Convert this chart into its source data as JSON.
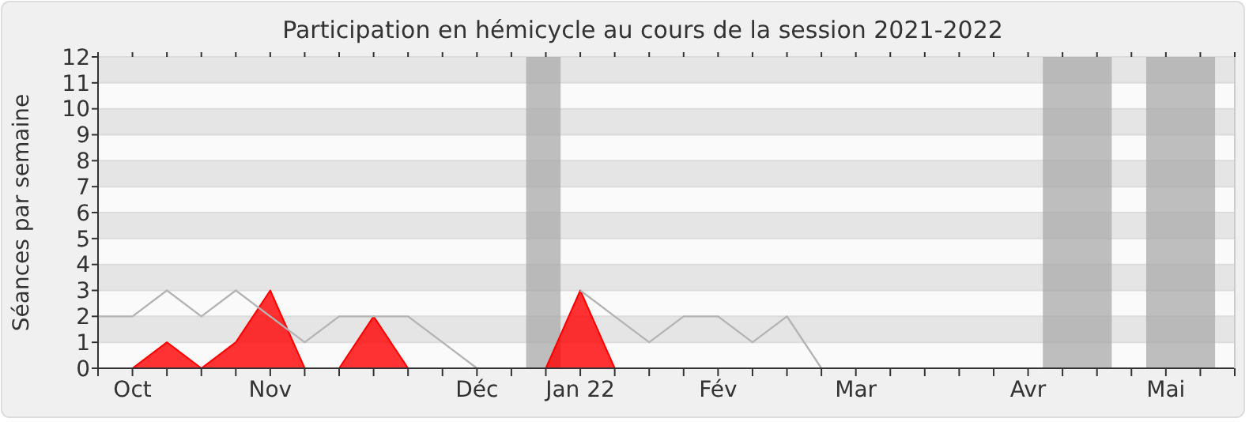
{
  "chart_data": {
    "type": "line",
    "title": "Participation en hémicycle au cours de la session 2021-2022",
    "ylabel": "Séances par semaine",
    "x": [
      "2021-09-28",
      "2021-10-05",
      "2021-10-12",
      "2021-10-19",
      "2021-10-26",
      "2021-11-02",
      "2021-11-09",
      "2021-11-16",
      "2021-11-23",
      "2021-11-30",
      "2021-12-07",
      "2021-12-14",
      "2021-12-21",
      "2021-12-28",
      "2022-01-04",
      "2022-01-11",
      "2022-01-18",
      "2022-01-25",
      "2022-02-01",
      "2022-02-08",
      "2022-02-15",
      "2022-02-22",
      "2022-03-01",
      "2022-03-08",
      "2022-03-15",
      "2022-03-22",
      "2022-03-29",
      "2022-04-05",
      "2022-04-12",
      "2022-04-19",
      "2022-04-26",
      "2022-05-03",
      "2022-05-10",
      "2022-05-17"
    ],
    "series": [
      {
        "type": "line",
        "color": "#b4b4b4",
        "values": [
          2,
          2,
          3,
          2,
          3,
          2,
          1,
          2,
          2,
          2,
          1,
          0,
          null,
          null,
          3,
          2,
          1,
          2,
          2,
          1,
          2,
          0,
          null,
          null,
          null,
          null,
          null,
          null,
          null,
          null,
          null,
          null,
          null,
          null
        ]
      },
      {
        "type": "area",
        "color": "#ff0000",
        "values": [
          0,
          0,
          1,
          0,
          1,
          3,
          0,
          0,
          2,
          0,
          0,
          0,
          0,
          0,
          3,
          0,
          0,
          0,
          0,
          0,
          0,
          0,
          0,
          0,
          0,
          0,
          0,
          0,
          0,
          0,
          0,
          0,
          0,
          0
        ]
      }
    ],
    "xlim": [
      "2021-09-28",
      "2022-05-17"
    ],
    "xticks": [
      {
        "value": "2021-09-28",
        "label": null
      },
      {
        "value": "2021-10-05",
        "label": "Oct"
      },
      {
        "value": "2021-10-12",
        "label": null
      },
      {
        "value": "2021-10-19",
        "label": null
      },
      {
        "value": "2021-10-26",
        "label": null
      },
      {
        "value": "2021-11-02",
        "label": "Nov"
      },
      {
        "value": "2021-11-09",
        "label": null
      },
      {
        "value": "2021-11-16",
        "label": null
      },
      {
        "value": "2021-11-23",
        "label": null
      },
      {
        "value": "2021-11-30",
        "label": null
      },
      {
        "value": "2021-12-07",
        "label": null
      },
      {
        "value": "2021-12-14",
        "label": "Déc"
      },
      {
        "value": "2021-12-21",
        "label": null
      },
      {
        "value": "2021-12-28",
        "label": null
      },
      {
        "value": "2022-01-04",
        "label": "Jan 22"
      },
      {
        "value": "2022-01-11",
        "label": null
      },
      {
        "value": "2022-01-18",
        "label": null
      },
      {
        "value": "2022-01-25",
        "label": null
      },
      {
        "value": "2022-02-01",
        "label": "Fév"
      },
      {
        "value": "2022-02-08",
        "label": null
      },
      {
        "value": "2022-02-15",
        "label": null
      },
      {
        "value": "2022-02-22",
        "label": null
      },
      {
        "value": "2022-03-01",
        "label": "Mar"
      },
      {
        "value": "2022-03-08",
        "label": null
      },
      {
        "value": "2022-03-15",
        "label": null
      },
      {
        "value": "2022-03-22",
        "label": null
      },
      {
        "value": "2022-03-29",
        "label": null
      },
      {
        "value": "2022-04-05",
        "label": "Avr"
      },
      {
        "value": "2022-04-12",
        "label": null
      },
      {
        "value": "2022-04-19",
        "label": null
      },
      {
        "value": "2022-04-26",
        "label": null
      },
      {
        "value": "2022-05-03",
        "label": "Mai"
      },
      {
        "value": "2022-05-10",
        "label": null
      },
      {
        "value": "2022-05-17",
        "label": null
      }
    ],
    "ylim": [
      0,
      12
    ],
    "yticks": [
      0,
      1,
      2,
      3,
      4,
      5,
      6,
      7,
      8,
      9,
      10,
      11,
      12
    ],
    "grid": "y",
    "bands": [
      {
        "axis": "x",
        "from": "2021-12-24",
        "to": "2021-12-31",
        "color": "#aaaaaa"
      },
      {
        "axis": "x",
        "from": "2022-04-08",
        "to": "2022-04-22",
        "color": "#aaaaaa"
      },
      {
        "axis": "x",
        "from": "2022-04-29",
        "to": "2022-05-13",
        "color": "#aaaaaa"
      }
    ]
  }
}
